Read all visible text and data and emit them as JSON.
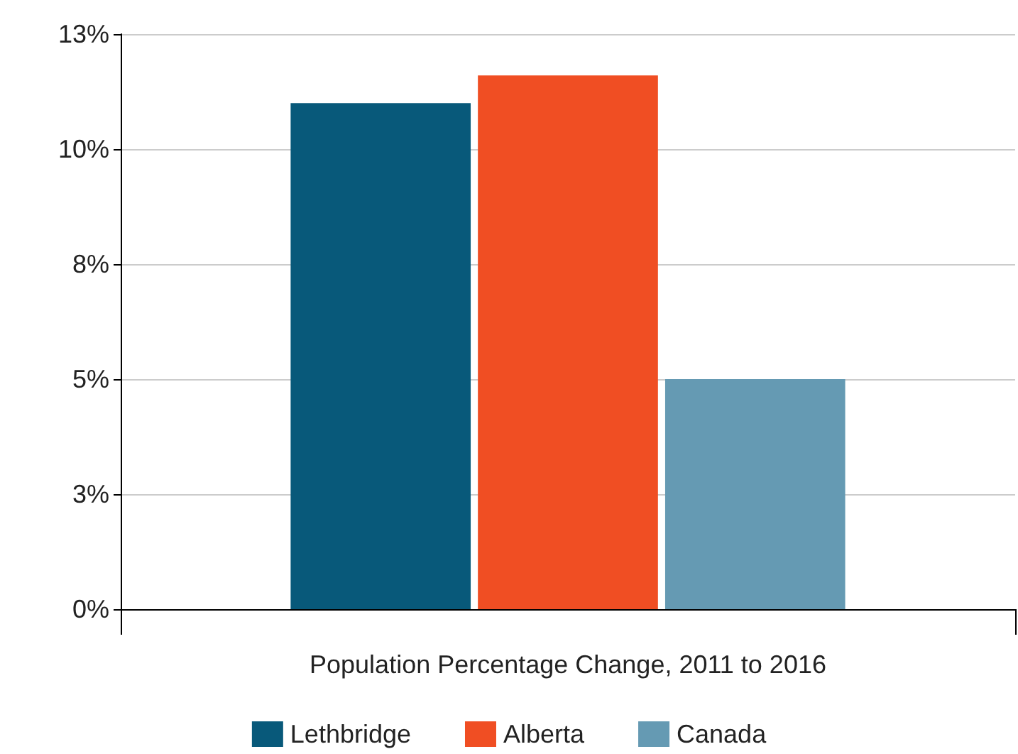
{
  "chart_data": {
    "type": "bar",
    "categories": [
      "Population Percentage Change, 2011 to 2016"
    ],
    "series": [
      {
        "name": "Lethbridge",
        "color": "#08597a",
        "values": [
          11.0
        ]
      },
      {
        "name": "Alberta",
        "color": "#f04e23",
        "values": [
          11.6
        ]
      },
      {
        "name": "Canada",
        "color": "#659ab3",
        "values": [
          5.0
        ]
      }
    ],
    "ylim": [
      0,
      12.5
    ],
    "yticks": [
      {
        "value": 0,
        "label": "0%"
      },
      {
        "value": 2.5,
        "label": "3%"
      },
      {
        "value": 5,
        "label": "5%"
      },
      {
        "value": 7.5,
        "label": "8%"
      },
      {
        "value": 10,
        "label": "10%"
      },
      {
        "value": 12.5,
        "label": "13%"
      }
    ],
    "grid": "y",
    "legend": "bottom"
  }
}
